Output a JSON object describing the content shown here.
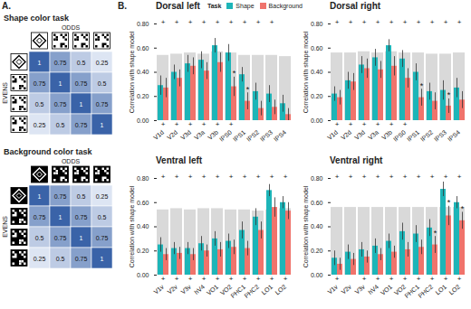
{
  "panel_a": {
    "label": "A.",
    "tasks": [
      {
        "title": "Shape color task",
        "column_header": "ODDS",
        "row_header": "EVENS",
        "matrix": [
          [
            1,
            0.75,
            0.5,
            0.25
          ],
          [
            0.75,
            1,
            0.75,
            0.5
          ],
          [
            0.5,
            0.75,
            1,
            0.75
          ],
          [
            0.25,
            0.5,
            0.75,
            1
          ]
        ]
      },
      {
        "title": "Background color task",
        "column_header": "ODDS",
        "row_header": "EVENS",
        "matrix": [
          [
            1,
            0.75,
            0.5,
            0.25
          ],
          [
            0.75,
            1,
            0.75,
            0.5
          ],
          [
            0.5,
            0.75,
            1,
            0.75
          ],
          [
            0.25,
            0.5,
            0.75,
            1
          ]
        ]
      }
    ]
  },
  "panel_b_label": "B.",
  "chart_data": [
    {
      "type": "bar",
      "title": "Dorsal left",
      "legend": "top",
      "legend_title": "Task",
      "categories": [
        "V1d",
        "V2d",
        "V3d",
        "V3a",
        "V3b",
        "IPS0",
        "IPS1",
        "IPS2",
        "IPS3",
        "IPS4"
      ],
      "ylabel": "Correlation with shape model",
      "ylim": [
        0,
        0.8
      ],
      "yticks": [
        {
          "value": 0,
          "label": "0.00"
        },
        {
          "value": 0.2,
          "label": "0.20"
        },
        {
          "value": 0.4,
          "label": "0.40"
        },
        {
          "value": 0.6,
          "label": "0.60"
        },
        {
          "value": 0.8,
          "label": "0.80"
        }
      ],
      "series": [
        {
          "name": "Shape",
          "color": "#1db5b8",
          "values": [
            0.29,
            0.4,
            0.47,
            0.5,
            0.62,
            0.56,
            0.38,
            0.24,
            0.22,
            0.14
          ],
          "errors": [
            0.08,
            0.06,
            0.07,
            0.07,
            0.06,
            0.07,
            0.06,
            0.07,
            0.07,
            0.07
          ],
          "significant": [
            true,
            true,
            true,
            true,
            true,
            true,
            true,
            true,
            true,
            false
          ]
        },
        {
          "name": "Background",
          "color": "#f0736b",
          "values": [
            0.27,
            0.35,
            0.45,
            0.41,
            0.48,
            0.28,
            0.16,
            0.1,
            0.11,
            0.05
          ],
          "errors": [
            0.08,
            0.07,
            0.07,
            0.07,
            0.08,
            0.08,
            0.07,
            0.06,
            0.06,
            0.05
          ],
          "significant": [
            true,
            true,
            true,
            true,
            true,
            true,
            false,
            false,
            false,
            false
          ]
        }
      ],
      "noise_ceiling": [
        0.54,
        0.55,
        0.56,
        0.55,
        0.57,
        0.56,
        0.54,
        0.54,
        0.54,
        0.53
      ],
      "difference": [
        false,
        false,
        false,
        false,
        false,
        true,
        true,
        false,
        false,
        false
      ],
      "sig_symbol": "+",
      "diff_symbol": "*"
    },
    {
      "type": "bar",
      "title": "Dorsal right",
      "categories": [
        "V1d",
        "V2d",
        "V3d",
        "V3a",
        "V3b",
        "IPS0",
        "IPS1",
        "IPS2",
        "IPS3",
        "IPS4"
      ],
      "ylabel": "Correlation with shape model",
      "ylim": [
        0,
        0.8
      ],
      "yticks": [
        {
          "value": 0,
          "label": "0.00"
        },
        {
          "value": 0.2,
          "label": "0.20"
        },
        {
          "value": 0.4,
          "label": "0.40"
        },
        {
          "value": 0.6,
          "label": "0.60"
        },
        {
          "value": 0.8,
          "label": "0.80"
        }
      ],
      "series": [
        {
          "name": "Shape",
          "color": "#1db5b8",
          "values": [
            0.22,
            0.33,
            0.46,
            0.52,
            0.62,
            0.51,
            0.4,
            0.24,
            0.25,
            0.27
          ],
          "errors": [
            0.06,
            0.07,
            0.07,
            0.07,
            0.05,
            0.07,
            0.07,
            0.07,
            0.08,
            0.08
          ],
          "significant": [
            true,
            true,
            true,
            true,
            true,
            true,
            true,
            true,
            true,
            true
          ]
        },
        {
          "name": "Background",
          "color": "#f0736b",
          "values": [
            0.19,
            0.32,
            0.43,
            0.42,
            0.45,
            0.35,
            0.19,
            0.16,
            0.12,
            0.17
          ],
          "errors": [
            0.06,
            0.07,
            0.08,
            0.07,
            0.08,
            0.08,
            0.07,
            0.07,
            0.06,
            0.07
          ],
          "significant": [
            true,
            true,
            true,
            true,
            true,
            true,
            false,
            false,
            false,
            false
          ]
        }
      ],
      "noise_ceiling": [
        0.56,
        0.56,
        0.57,
        0.56,
        0.57,
        0.56,
        0.56,
        0.55,
        0.55,
        0.56
      ],
      "difference": [
        false,
        false,
        false,
        false,
        false,
        false,
        true,
        false,
        true,
        false
      ],
      "sig_symbol": "+",
      "diff_symbol": "*"
    },
    {
      "type": "bar",
      "title": "Ventral left",
      "categories": [
        "V1v",
        "V2v",
        "V3v",
        "hV4",
        "VO1",
        "VO2",
        "PHC1",
        "PHC2",
        "LO1",
        "LO2"
      ],
      "ylabel": "Correlation with shape model",
      "ylim": [
        0,
        0.8
      ],
      "yticks": [
        {
          "value": 0,
          "label": "0.00"
        },
        {
          "value": 0.2,
          "label": "0.20"
        },
        {
          "value": 0.4,
          "label": "0.40"
        },
        {
          "value": 0.6,
          "label": "0.60"
        },
        {
          "value": 0.8,
          "label": "0.80"
        }
      ],
      "series": [
        {
          "name": "Shape",
          "color": "#1db5b8",
          "values": [
            0.25,
            0.22,
            0.22,
            0.26,
            0.3,
            0.28,
            0.37,
            0.48,
            0.7,
            0.6
          ],
          "errors": [
            0.06,
            0.05,
            0.05,
            0.06,
            0.06,
            0.06,
            0.07,
            0.07,
            0.05,
            0.05
          ],
          "significant": [
            true,
            true,
            true,
            true,
            true,
            true,
            true,
            true,
            true,
            true
          ]
        },
        {
          "name": "Background",
          "color": "#f0736b",
          "values": [
            0.17,
            0.18,
            0.17,
            0.2,
            0.21,
            0.23,
            0.22,
            0.37,
            0.56,
            0.53
          ],
          "errors": [
            0.05,
            0.05,
            0.05,
            0.05,
            0.06,
            0.06,
            0.06,
            0.07,
            0.08,
            0.07
          ],
          "significant": [
            true,
            true,
            true,
            true,
            true,
            true,
            true,
            true,
            true,
            true
          ]
        }
      ],
      "noise_ceiling": [
        0.54,
        0.55,
        0.54,
        0.55,
        0.55,
        0.54,
        0.54,
        0.53,
        0.54,
        0.55
      ],
      "difference": [
        false,
        false,
        false,
        false,
        false,
        false,
        false,
        false,
        false,
        false
      ],
      "sig_symbol": "+",
      "diff_symbol": "*"
    },
    {
      "type": "bar",
      "title": "Ventral right",
      "categories": [
        "V1v",
        "V2v",
        "V3v",
        "hV4",
        "VO1",
        "VO2",
        "PHC1",
        "PHC2",
        "LO1",
        "LO2"
      ],
      "ylabel": "Correlation with shape model",
      "ylim": [
        0,
        0.8
      ],
      "yticks": [
        {
          "value": 0,
          "label": "0.00"
        },
        {
          "value": 0.2,
          "label": "0.20"
        },
        {
          "value": 0.4,
          "label": "0.40"
        },
        {
          "value": 0.6,
          "label": "0.60"
        },
        {
          "value": 0.8,
          "label": "0.80"
        }
      ],
      "series": [
        {
          "name": "Shape",
          "color": "#1db5b8",
          "values": [
            0.14,
            0.19,
            0.21,
            0.24,
            0.28,
            0.36,
            0.34,
            0.39,
            0.71,
            0.6
          ],
          "errors": [
            0.06,
            0.06,
            0.06,
            0.06,
            0.06,
            0.07,
            0.07,
            0.07,
            0.06,
            0.05
          ],
          "significant": [
            true,
            true,
            true,
            true,
            true,
            true,
            true,
            true,
            true,
            true
          ]
        },
        {
          "name": "Background",
          "color": "#f0736b",
          "values": [
            0.09,
            0.13,
            0.15,
            0.17,
            0.19,
            0.21,
            0.23,
            0.25,
            0.49,
            0.45
          ],
          "errors": [
            0.05,
            0.05,
            0.05,
            0.05,
            0.05,
            0.06,
            0.06,
            0.07,
            0.08,
            0.07
          ],
          "significant": [
            true,
            false,
            true,
            true,
            true,
            true,
            true,
            true,
            true,
            true
          ]
        }
      ],
      "noise_ceiling": [
        0.56,
        0.56,
        0.56,
        0.56,
        0.56,
        0.56,
        0.56,
        0.56,
        0.56,
        0.56
      ],
      "difference": [
        false,
        false,
        false,
        false,
        false,
        false,
        false,
        true,
        true,
        true
      ],
      "sig_symbol": "+",
      "diff_symbol": "*"
    }
  ]
}
